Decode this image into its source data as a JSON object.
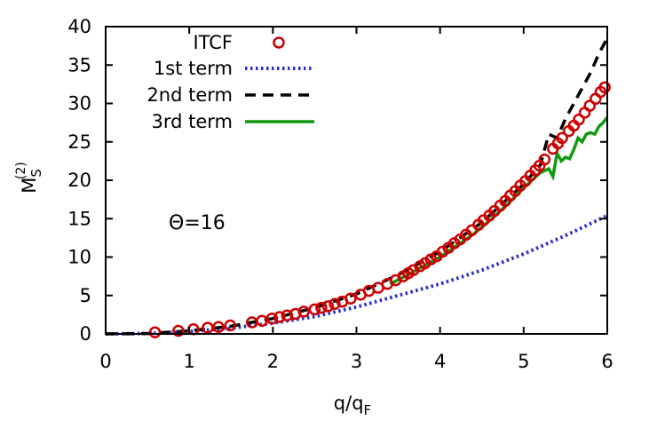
{
  "chart_data": {
    "type": "line",
    "title": "",
    "xlabel": {
      "base": "q/q",
      "sub": "F"
    },
    "ylabel": {
      "base": "M",
      "sub": "S",
      "sup": "(2)"
    },
    "xlim": [
      0,
      6
    ],
    "ylim": [
      0,
      40
    ],
    "xticks": [
      0,
      1,
      2,
      3,
      4,
      5,
      6
    ],
    "yticks": [
      0,
      5,
      10,
      15,
      20,
      25,
      30,
      35,
      40
    ],
    "grid": false,
    "legend_position": "top-left",
    "annotation": "Θ=16",
    "colors": {
      "itcf": "#cc0000",
      "first": "#2b2bcc",
      "second": "#000000",
      "third": "#119911",
      "axis": "#000000"
    },
    "series": [
      {
        "name": "ITCF",
        "style": "circles",
        "x": [
          0.59,
          0.87,
          1.05,
          1.22,
          1.35,
          1.49,
          1.75,
          1.87,
          1.99,
          2.08,
          2.17,
          2.27,
          2.37,
          2.5,
          2.58,
          2.66,
          2.74,
          2.83,
          2.93,
          3.05,
          3.15,
          3.26,
          3.37,
          3.47,
          3.56,
          3.62,
          3.68,
          3.76,
          3.82,
          3.89,
          3.96,
          4.03,
          4.1,
          4.17,
          4.24,
          4.31,
          4.38,
          4.46,
          4.52,
          4.59,
          4.65,
          4.72,
          4.78,
          4.84,
          4.9,
          4.96,
          5.02,
          5.08,
          5.14,
          5.19,
          5.25,
          5.35,
          5.41,
          5.46,
          5.54,
          5.6,
          5.66,
          5.73,
          5.79,
          5.86,
          5.92,
          5.97
        ],
        "y": [
          0.2,
          0.4,
          0.6,
          0.8,
          0.9,
          1.1,
          1.5,
          1.7,
          2.0,
          2.2,
          2.4,
          2.6,
          2.9,
          3.2,
          3.4,
          3.6,
          3.9,
          4.2,
          4.6,
          5.1,
          5.6,
          6.0,
          6.5,
          7.0,
          7.5,
          7.9,
          8.3,
          8.8,
          9.2,
          9.7,
          10.1,
          10.7,
          11.2,
          11.8,
          12.3,
          12.9,
          13.5,
          14.2,
          14.8,
          15.4,
          16.0,
          16.7,
          17.3,
          18.0,
          18.6,
          19.3,
          19.9,
          20.6,
          21.3,
          21.9,
          22.7,
          24.1,
          24.8,
          25.5,
          26.4,
          27.1,
          27.9,
          28.8,
          29.7,
          30.6,
          31.5,
          32.1
        ]
      },
      {
        "name": "1st term",
        "style": "dotted",
        "x": [
          0,
          0.5,
          1,
          1.5,
          2,
          2.5,
          3,
          3.5,
          4,
          4.5,
          5,
          5.5,
          6
        ],
        "y": [
          0,
          0.05,
          0.3,
          0.75,
          1.4,
          2.25,
          3.5,
          5.0,
          6.5,
          8.3,
          10.4,
          12.8,
          15.4
        ]
      },
      {
        "name": "2nd term",
        "style": "dashed",
        "x": [
          0,
          0.5,
          1,
          1.5,
          2,
          2.5,
          3,
          3.5,
          4,
          4.5,
          5,
          5.2,
          5.3,
          5.4,
          5.5,
          5.6,
          5.7,
          5.8,
          5.9,
          6.0
        ],
        "y": [
          0,
          0.05,
          0.4,
          1.0,
          2.0,
          3.4,
          5.2,
          7.7,
          10.7,
          14.5,
          19.5,
          22.0,
          26.0,
          25.5,
          28.0,
          30.0,
          32.0,
          34.0,
          36.5,
          38.5
        ]
      },
      {
        "name": "3rd term",
        "style": "solid",
        "x": [
          3.4,
          3.6,
          3.8,
          4.0,
          4.2,
          4.4,
          4.6,
          4.8,
          5.0,
          5.1,
          5.2,
          5.3,
          5.35,
          5.4,
          5.45,
          5.5,
          5.55,
          5.6,
          5.65,
          5.7,
          5.75,
          5.8,
          5.85,
          5.9,
          5.95,
          6.0
        ],
        "y": [
          6.5,
          7.6,
          8.8,
          10.0,
          11.5,
          13.0,
          14.8,
          16.8,
          19.0,
          20.0,
          21.0,
          21.5,
          20.5,
          23.5,
          22.5,
          23.0,
          22.8,
          24.0,
          25.5,
          25.0,
          26.0,
          26.2,
          26.0,
          27.0,
          27.5,
          28.2
        ]
      }
    ]
  }
}
